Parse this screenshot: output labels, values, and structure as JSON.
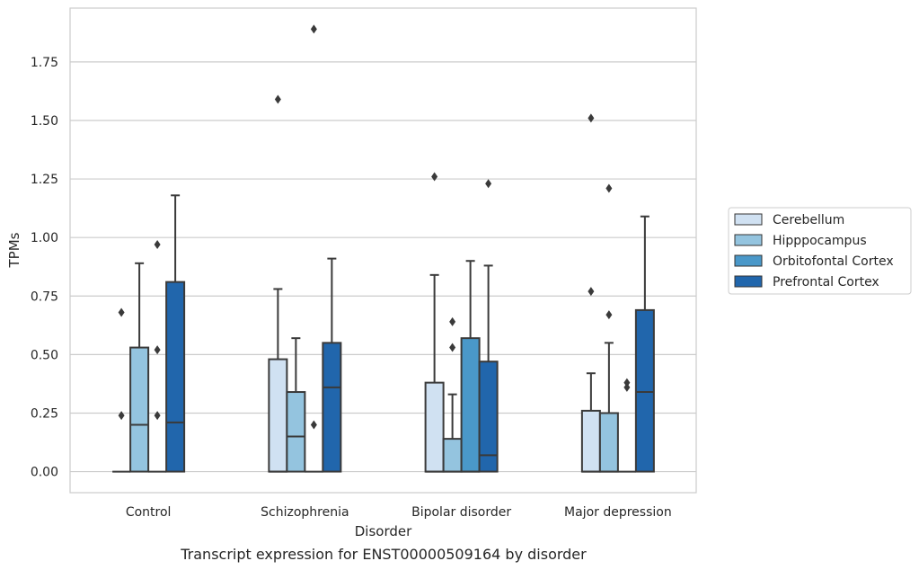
{
  "chart_data": {
    "type": "box",
    "caption": "Transcript expression for ENST00000509164 by disorder",
    "xlabel": "Disorder",
    "ylabel": "TPMs",
    "ylim": [
      -0.09,
      1.98
    ],
    "yticks": [
      0.0,
      0.25,
      0.5,
      0.75,
      1.0,
      1.25,
      1.5,
      1.75
    ],
    "ytick_labels": [
      "0.00",
      "0.25",
      "0.50",
      "0.75",
      "1.00",
      "1.25",
      "1.50",
      "1.75"
    ],
    "grid": true,
    "legend_position": "right",
    "categories": [
      "Control",
      "Schizophrenia",
      "Bipolar disorder",
      "Major depression"
    ],
    "series": [
      {
        "name": "Cerebellum",
        "color": "#d0e1f2",
        "boxes": [
          {
            "q1": 0.0,
            "median": 0.0,
            "q3": 0.0,
            "whisker_low": 0.0,
            "whisker_high": 0.0,
            "outliers": [
              0.24,
              0.68
            ]
          },
          {
            "q1": 0.0,
            "median": 0.0,
            "q3": 0.48,
            "whisker_low": 0.0,
            "whisker_high": 0.78,
            "outliers": [
              1.59
            ]
          },
          {
            "q1": 0.0,
            "median": 0.0,
            "q3": 0.38,
            "whisker_low": 0.0,
            "whisker_high": 0.84,
            "outliers": [
              1.26
            ]
          },
          {
            "q1": 0.0,
            "median": 0.0,
            "q3": 0.26,
            "whisker_low": 0.0,
            "whisker_high": 0.42,
            "outliers": [
              0.77,
              1.51
            ]
          }
        ]
      },
      {
        "name": "Hipppocampus",
        "color": "#94c4df",
        "boxes": [
          {
            "q1": 0.0,
            "median": 0.2,
            "q3": 0.53,
            "whisker_low": 0.0,
            "whisker_high": 0.89,
            "outliers": []
          },
          {
            "q1": 0.0,
            "median": 0.15,
            "q3": 0.34,
            "whisker_low": 0.0,
            "whisker_high": 0.57,
            "outliers": []
          },
          {
            "q1": 0.0,
            "median": 0.0,
            "q3": 0.14,
            "whisker_low": 0.0,
            "whisker_high": 0.33,
            "outliers": [
              0.53,
              0.64
            ]
          },
          {
            "q1": 0.0,
            "median": 0.0,
            "q3": 0.25,
            "whisker_low": 0.0,
            "whisker_high": 0.55,
            "outliers": [
              0.67,
              1.21
            ]
          }
        ]
      },
      {
        "name": "Orbitofontal Cortex",
        "color": "#4a98c9",
        "boxes": [
          {
            "q1": 0.0,
            "median": 0.0,
            "q3": 0.0,
            "whisker_low": 0.0,
            "whisker_high": 0.0,
            "outliers": [
              0.24,
              0.52,
              0.97
            ]
          },
          {
            "q1": 0.0,
            "median": 0.0,
            "q3": 0.0,
            "whisker_low": 0.0,
            "whisker_high": 0.0,
            "outliers": [
              0.2,
              1.89
            ]
          },
          {
            "q1": 0.0,
            "median": 0.0,
            "q3": 0.57,
            "whisker_low": 0.0,
            "whisker_high": 0.9,
            "outliers": []
          },
          {
            "q1": 0.0,
            "median": 0.0,
            "q3": 0.0,
            "whisker_low": 0.0,
            "whisker_high": 0.0,
            "outliers": [
              0.36,
              0.38
            ]
          }
        ]
      },
      {
        "name": "Prefrontal Cortex",
        "color": "#2166ac",
        "boxes": [
          {
            "q1": 0.0,
            "median": 0.21,
            "q3": 0.81,
            "whisker_low": 0.0,
            "whisker_high": 1.18,
            "outliers": []
          },
          {
            "q1": 0.0,
            "median": 0.36,
            "q3": 0.55,
            "whisker_low": 0.0,
            "whisker_high": 0.91,
            "outliers": []
          },
          {
            "q1": 0.0,
            "median": 0.07,
            "q3": 0.47,
            "whisker_low": 0.0,
            "whisker_high": 0.88,
            "outliers": [
              1.23
            ]
          },
          {
            "q1": 0.0,
            "median": 0.34,
            "q3": 0.69,
            "whisker_low": 0.0,
            "whisker_high": 1.09,
            "outliers": []
          }
        ]
      }
    ]
  }
}
